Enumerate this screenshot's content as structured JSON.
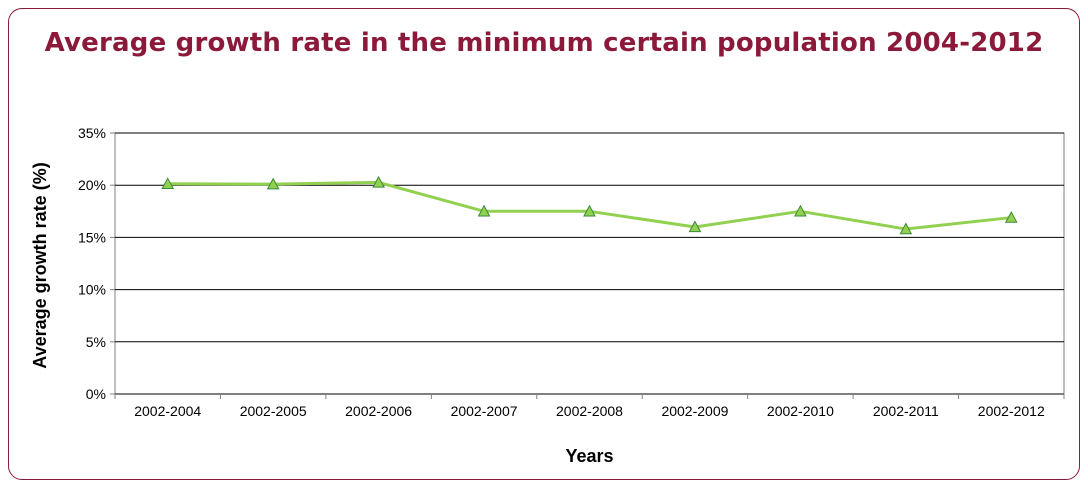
{
  "chart_data": {
    "type": "line",
    "title": "Average growth rate in the minimum certain population 2004-2012",
    "xlabel": "Years",
    "ylabel": "Average growth rate (%)",
    "ylim": [
      0,
      35
    ],
    "yticks": [
      0,
      5,
      10,
      15,
      20,
      35
    ],
    "ytick_labels": [
      "0%",
      "5%",
      "10%",
      "15%",
      "20%",
      "35%"
    ],
    "grid": true,
    "legend": "none",
    "categories": [
      "2002-2004",
      "2002-2005",
      "2002-2006",
      "2002-2007",
      "2002-2008",
      "2002-2009",
      "2002-2010",
      "2002-2011",
      "2002-2012"
    ],
    "series": [
      {
        "values": [
          20.4,
          20.3,
          20.8,
          17.5,
          17.5,
          16.0,
          17.5,
          15.8,
          16.9
        ],
        "color": "#92d050",
        "marker": "triangle",
        "marker_fill": "#92d050",
        "marker_stroke": "#3a8a3a"
      }
    ]
  }
}
